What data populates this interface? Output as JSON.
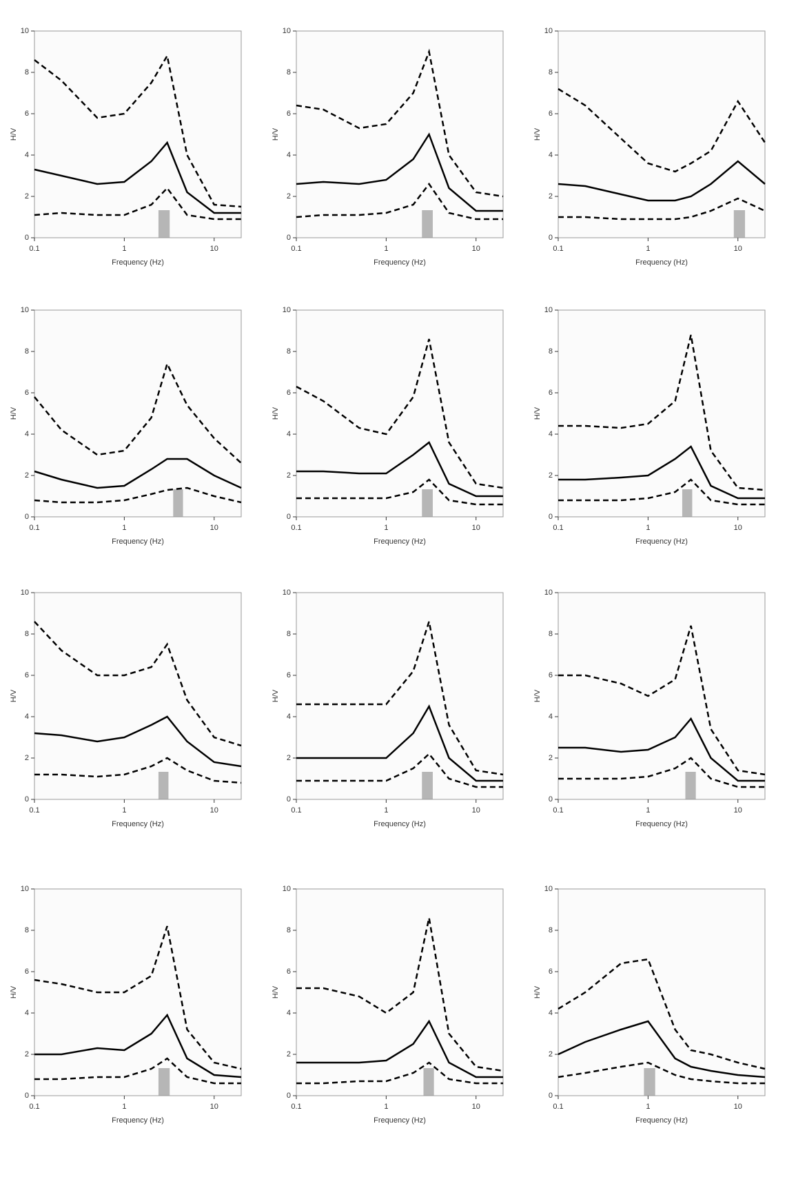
{
  "chart_data": [
    {
      "type": "line",
      "x_label": "Frequency (Hz)",
      "y_label": "H/V",
      "x": [
        0.1,
        0.2,
        0.5,
        1,
        2,
        3,
        5,
        10,
        20
      ],
      "xlim": [
        0.1,
        20
      ],
      "xticks": [
        0.1,
        1,
        10
      ],
      "ylim": [
        0,
        10
      ],
      "yticks": [
        0,
        2,
        4,
        6,
        8,
        10
      ],
      "log_x": true,
      "f0_band": [
        2.4,
        3.2
      ],
      "series": [
        {
          "color": "#000000",
          "dash": true,
          "values": [
            8.6,
            7.6,
            5.8,
            6,
            7.5,
            8.8,
            4,
            1.6,
            1.5
          ]
        },
        {
          "color": "#000000",
          "dash": false,
          "values": [
            3.3,
            3,
            2.6,
            2.7,
            3.7,
            4.6,
            2.2,
            1.2,
            1.2
          ]
        },
        {
          "color": "#000000",
          "dash": true,
          "values": [
            1.1,
            1.2,
            1.1,
            1.1,
            1.6,
            2.4,
            1.1,
            0.9,
            0.9
          ]
        }
      ]
    },
    {
      "type": "line",
      "x_label": "Frequency (Hz)",
      "y_label": "H/V",
      "x": [
        0.1,
        0.2,
        0.5,
        1,
        2,
        3,
        5,
        10,
        20
      ],
      "xlim": [
        0.1,
        20
      ],
      "xticks": [
        0.1,
        1,
        10
      ],
      "ylim": [
        0,
        10
      ],
      "yticks": [
        0,
        2,
        4,
        6,
        8,
        10
      ],
      "log_x": true,
      "f0_band": [
        2.5,
        3.3
      ],
      "series": [
        {
          "color": "#000000",
          "dash": true,
          "values": [
            6.4,
            6.2,
            5.3,
            5.5,
            7,
            9,
            4,
            2.2,
            2
          ]
        },
        {
          "color": "#000000",
          "dash": false,
          "values": [
            2.6,
            2.7,
            2.6,
            2.8,
            3.8,
            5,
            2.4,
            1.3,
            1.3
          ]
        },
        {
          "color": "#000000",
          "dash": true,
          "values": [
            1,
            1.1,
            1.1,
            1.2,
            1.6,
            2.6,
            1.2,
            0.9,
            0.9
          ]
        }
      ]
    },
    {
      "type": "line",
      "x_label": "Frequency (Hz)",
      "y_label": "H/V",
      "x": [
        0.1,
        0.2,
        0.5,
        1,
        2,
        3,
        5,
        10,
        20
      ],
      "xlim": [
        0.1,
        20
      ],
      "xticks": [
        0.1,
        1,
        10
      ],
      "ylim": [
        0,
        10
      ],
      "yticks": [
        0,
        2,
        4,
        6,
        8,
        10
      ],
      "log_x": true,
      "f0_band": [
        9,
        12
      ],
      "series": [
        {
          "color": "#000000",
          "dash": true,
          "values": [
            7.2,
            6.4,
            4.8,
            3.6,
            3.2,
            3.6,
            4.2,
            6.6,
            4.6
          ]
        },
        {
          "color": "#000000",
          "dash": false,
          "values": [
            2.6,
            2.5,
            2.1,
            1.8,
            1.8,
            2,
            2.6,
            3.7,
            2.6
          ]
        },
        {
          "color": "#000000",
          "dash": true,
          "values": [
            1,
            1,
            0.9,
            0.9,
            0.9,
            1,
            1.3,
            1.9,
            1.3
          ]
        }
      ]
    },
    {
      "type": "line",
      "x_label": "Frequency (Hz)",
      "y_label": "H/V",
      "x": [
        0.1,
        0.2,
        0.5,
        1,
        2,
        3,
        5,
        10,
        20
      ],
      "xlim": [
        0.1,
        20
      ],
      "xticks": [
        0.1,
        1,
        10
      ],
      "ylim": [
        0,
        10
      ],
      "yticks": [
        0,
        2,
        4,
        6,
        8,
        10
      ],
      "log_x": true,
      "f0_band": [
        3.5,
        4.5
      ],
      "series": [
        {
          "color": "#000000",
          "dash": true,
          "values": [
            5.8,
            4.2,
            3,
            3.2,
            4.8,
            7.4,
            5.4,
            3.8,
            2.6
          ]
        },
        {
          "color": "#000000",
          "dash": false,
          "values": [
            2.2,
            1.8,
            1.4,
            1.5,
            2.3,
            2.8,
            2.8,
            2,
            1.4
          ]
        },
        {
          "color": "#000000",
          "dash": true,
          "values": [
            0.8,
            0.7,
            0.7,
            0.8,
            1.1,
            1.3,
            1.4,
            1,
            0.7
          ]
        }
      ]
    },
    {
      "type": "line",
      "x_label": "Frequency (Hz)",
      "y_label": "H/V",
      "x": [
        0.1,
        0.2,
        0.5,
        1,
        2,
        3,
        5,
        10,
        20
      ],
      "xlim": [
        0.1,
        20
      ],
      "xticks": [
        0.1,
        1,
        10
      ],
      "ylim": [
        0,
        10
      ],
      "yticks": [
        0,
        2,
        4,
        6,
        8,
        10
      ],
      "log_x": true,
      "f0_band": [
        2.5,
        3.3
      ],
      "series": [
        {
          "color": "#000000",
          "dash": true,
          "values": [
            6.3,
            5.6,
            4.3,
            4,
            5.8,
            8.6,
            3.6,
            1.6,
            1.4
          ]
        },
        {
          "color": "#000000",
          "dash": false,
          "values": [
            2.2,
            2.2,
            2.1,
            2.1,
            3,
            3.6,
            1.6,
            1,
            1
          ]
        },
        {
          "color": "#000000",
          "dash": true,
          "values": [
            0.9,
            0.9,
            0.9,
            0.9,
            1.2,
            1.8,
            0.8,
            0.6,
            0.6
          ]
        }
      ]
    },
    {
      "type": "line",
      "x_label": "Frequency (Hz)",
      "y_label": "H/V",
      "x": [
        0.1,
        0.2,
        0.5,
        1,
        2,
        3,
        5,
        10,
        20
      ],
      "xlim": [
        0.1,
        20
      ],
      "xticks": [
        0.1,
        1,
        10
      ],
      "ylim": [
        0,
        10
      ],
      "yticks": [
        0,
        2,
        4,
        6,
        8,
        10
      ],
      "log_x": true,
      "f0_band": [
        2.4,
        3.1
      ],
      "series": [
        {
          "color": "#000000",
          "dash": true,
          "values": [
            4.4,
            4.4,
            4.3,
            4.5,
            5.6,
            8.8,
            3.2,
            1.4,
            1.3
          ]
        },
        {
          "color": "#000000",
          "dash": false,
          "values": [
            1.8,
            1.8,
            1.9,
            2,
            2.8,
            3.4,
            1.5,
            0.9,
            0.9
          ]
        },
        {
          "color": "#000000",
          "dash": true,
          "values": [
            0.8,
            0.8,
            0.8,
            0.9,
            1.2,
            1.8,
            0.8,
            0.6,
            0.6
          ]
        }
      ]
    },
    {
      "type": "line",
      "x_label": "Frequency (Hz)",
      "y_label": "H/V",
      "x": [
        0.1,
        0.2,
        0.5,
        1,
        2,
        3,
        5,
        10,
        20
      ],
      "xlim": [
        0.1,
        20
      ],
      "xticks": [
        0.1,
        1,
        10
      ],
      "ylim": [
        0,
        10
      ],
      "yticks": [
        0,
        2,
        4,
        6,
        8,
        10
      ],
      "log_x": true,
      "f0_band": [
        2.4,
        3.1
      ],
      "series": [
        {
          "color": "#000000",
          "dash": true,
          "values": [
            8.6,
            7.2,
            6,
            6,
            6.4,
            7.5,
            4.8,
            3,
            2.6
          ]
        },
        {
          "color": "#000000",
          "dash": false,
          "values": [
            3.2,
            3.1,
            2.8,
            3,
            3.6,
            4,
            2.8,
            1.8,
            1.6
          ]
        },
        {
          "color": "#000000",
          "dash": true,
          "values": [
            1.2,
            1.2,
            1.1,
            1.2,
            1.6,
            2,
            1.4,
            0.9,
            0.8
          ]
        }
      ]
    },
    {
      "type": "line",
      "x_label": "Frequency (Hz)",
      "y_label": "H/V",
      "x": [
        0.1,
        0.2,
        0.5,
        1,
        2,
        3,
        5,
        10,
        20
      ],
      "xlim": [
        0.1,
        20
      ],
      "xticks": [
        0.1,
        1,
        10
      ],
      "ylim": [
        0,
        10
      ],
      "yticks": [
        0,
        2,
        4,
        6,
        8,
        10
      ],
      "log_x": true,
      "f0_band": [
        2.5,
        3.3
      ],
      "series": [
        {
          "color": "#000000",
          "dash": true,
          "values": [
            4.6,
            4.6,
            4.6,
            4.6,
            6.2,
            8.6,
            3.6,
            1.4,
            1.2
          ]
        },
        {
          "color": "#000000",
          "dash": false,
          "values": [
            2,
            2,
            2,
            2,
            3.2,
            4.5,
            2,
            0.9,
            0.9
          ]
        },
        {
          "color": "#000000",
          "dash": true,
          "values": [
            0.9,
            0.9,
            0.9,
            0.9,
            1.5,
            2.2,
            1,
            0.6,
            0.6
          ]
        }
      ]
    },
    {
      "type": "line",
      "x_label": "Frequency (Hz)",
      "y_label": "H/V",
      "x": [
        0.1,
        0.2,
        0.5,
        1,
        2,
        3,
        5,
        10,
        20
      ],
      "xlim": [
        0.1,
        20
      ],
      "xticks": [
        0.1,
        1,
        10
      ],
      "ylim": [
        0,
        10
      ],
      "yticks": [
        0,
        2,
        4,
        6,
        8,
        10
      ],
      "log_x": true,
      "f0_band": [
        2.6,
        3.4
      ],
      "series": [
        {
          "color": "#000000",
          "dash": true,
          "values": [
            6,
            6,
            5.6,
            5,
            5.8,
            8.4,
            3.4,
            1.4,
            1.2
          ]
        },
        {
          "color": "#000000",
          "dash": false,
          "values": [
            2.5,
            2.5,
            2.3,
            2.4,
            3,
            3.9,
            2,
            0.9,
            0.9
          ]
        },
        {
          "color": "#000000",
          "dash": true,
          "values": [
            1,
            1,
            1,
            1.1,
            1.5,
            2,
            1,
            0.6,
            0.6
          ]
        }
      ]
    },
    {
      "type": "line",
      "x_label": "Frequency (Hz)",
      "y_label": "H/V",
      "x": [
        0.1,
        0.2,
        0.5,
        1,
        2,
        3,
        5,
        10,
        20
      ],
      "xlim": [
        0.1,
        20
      ],
      "xticks": [
        0.1,
        1,
        10
      ],
      "ylim": [
        0,
        10
      ],
      "yticks": [
        0,
        2,
        4,
        6,
        8,
        10
      ],
      "log_x": true,
      "f0_band": [
        2.4,
        3.2
      ],
      "series": [
        {
          "color": "#000000",
          "dash": true,
          "values": [
            5.6,
            5.4,
            5,
            5,
            5.8,
            8.2,
            3.2,
            1.6,
            1.3
          ]
        },
        {
          "color": "#000000",
          "dash": false,
          "values": [
            2,
            2,
            2.3,
            2.2,
            3,
            3.9,
            1.8,
            1,
            0.9
          ]
        },
        {
          "color": "#000000",
          "dash": true,
          "values": [
            0.8,
            0.8,
            0.9,
            0.9,
            1.3,
            1.8,
            0.9,
            0.6,
            0.6
          ]
        }
      ]
    },
    {
      "type": "line",
      "x_label": "Frequency (Hz)",
      "y_label": "H/V",
      "x": [
        0.1,
        0.2,
        0.5,
        1,
        2,
        3,
        5,
        10,
        20
      ],
      "xlim": [
        0.1,
        20
      ],
      "xticks": [
        0.1,
        1,
        10
      ],
      "ylim": [
        0,
        10
      ],
      "yticks": [
        0,
        2,
        4,
        6,
        8,
        10
      ],
      "log_x": true,
      "f0_band": [
        2.6,
        3.4
      ],
      "series": [
        {
          "color": "#000000",
          "dash": true,
          "values": [
            5.2,
            5.2,
            4.8,
            4,
            5,
            8.6,
            3,
            1.4,
            1.2
          ]
        },
        {
          "color": "#000000",
          "dash": false,
          "values": [
            1.6,
            1.6,
            1.6,
            1.7,
            2.5,
            3.6,
            1.6,
            0.9,
            0.9
          ]
        },
        {
          "color": "#000000",
          "dash": true,
          "values": [
            0.6,
            0.6,
            0.7,
            0.7,
            1.1,
            1.6,
            0.8,
            0.6,
            0.6
          ]
        }
      ]
    },
    {
      "type": "line",
      "x_label": "Frequency (Hz)",
      "y_label": "H/V",
      "x": [
        0.1,
        0.2,
        0.5,
        1,
        2,
        3,
        5,
        10,
        20
      ],
      "xlim": [
        0.1,
        20
      ],
      "xticks": [
        0.1,
        1,
        10
      ],
      "ylim": [
        0,
        10
      ],
      "yticks": [
        0,
        2,
        4,
        6,
        8,
        10
      ],
      "log_x": true,
      "f0_band": [
        0.9,
        1.2
      ],
      "series": [
        {
          "color": "#000000",
          "dash": true,
          "values": [
            4.2,
            5,
            6.4,
            6.6,
            3.2,
            2.2,
            2,
            1.6,
            1.3
          ]
        },
        {
          "color": "#000000",
          "dash": false,
          "values": [
            2,
            2.6,
            3.2,
            3.6,
            1.8,
            1.4,
            1.2,
            1,
            0.9
          ]
        },
        {
          "color": "#000000",
          "dash": true,
          "values": [
            0.9,
            1.1,
            1.4,
            1.6,
            1,
            0.8,
            0.7,
            0.6,
            0.6
          ]
        }
      ]
    }
  ]
}
